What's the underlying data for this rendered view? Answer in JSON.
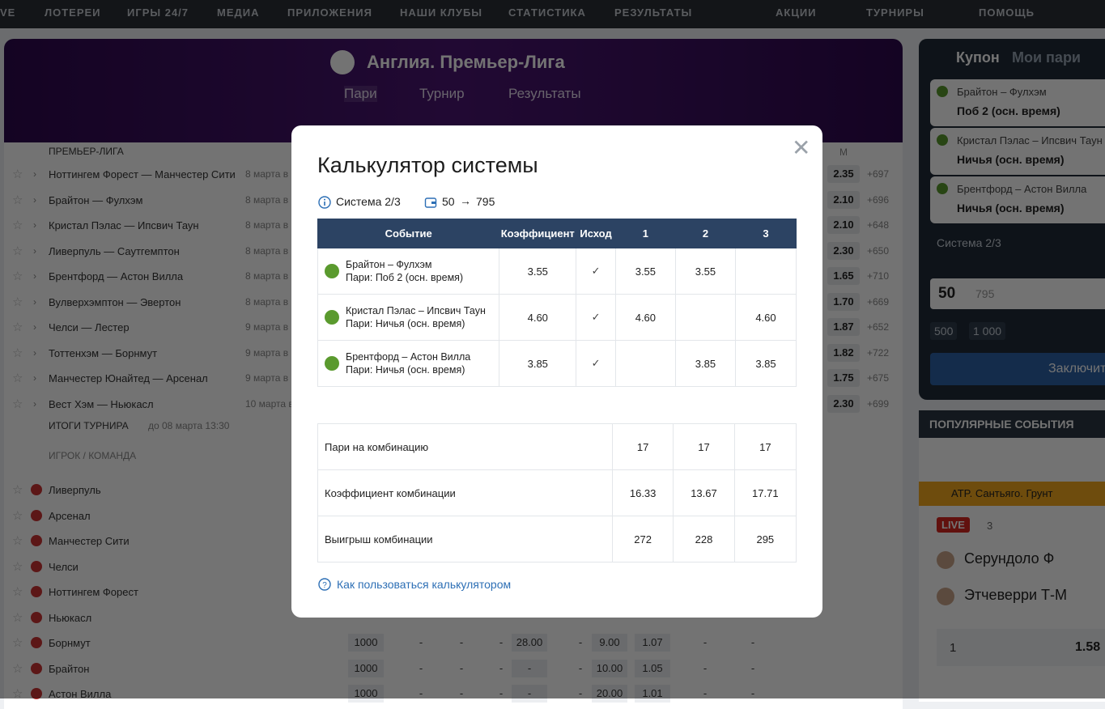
{
  "nav": {
    "items": [
      "VE",
      "ЛОТЕРЕИ",
      "ИГРЫ 24/7",
      "МЕДИА",
      "ПРИЛОЖЕНИЯ",
      "НАШИ КЛУБЫ",
      "СТАТИСТИКА",
      "РЕЗУЛЬТАТЫ"
    ],
    "right": [
      "АКЦИИ",
      "ТУРНИРЫ",
      "ПОМОЩЬ"
    ]
  },
  "league": {
    "title": "Англия. Премьер-Лига",
    "tabs": [
      "Пари",
      "Турнир",
      "Результаты"
    ]
  },
  "matches": {
    "section": "ПРЕМЬЕР-ЛИГА",
    "column": "М",
    "rows": [
      {
        "name": "Ноттингем Форест — Манчестер Сити",
        "date": "8 марта в",
        "odd": "2.35",
        "more": "+697"
      },
      {
        "name": "Брайтон — Фулхэм",
        "date": "8 марта в",
        "odd": "2.10",
        "more": "+696"
      },
      {
        "name": "Кристал Пэлас — Ипсвич Таун",
        "date": "8 марта в",
        "odd": "2.10",
        "more": "+648"
      },
      {
        "name": "Ливерпуль — Саутгемптон",
        "date": "8 марта в",
        "odd": "2.30",
        "more": "+650"
      },
      {
        "name": "Брентфорд — Астон Вилла",
        "date": "8 марта в",
        "odd": "1.65",
        "more": "+710"
      },
      {
        "name": "Вулверхэмптон — Эвертон",
        "date": "8 марта в",
        "odd": "1.70",
        "more": "+669"
      },
      {
        "name": "Челси — Лестер",
        "date": "9 марта в",
        "odd": "1.87",
        "more": "+652"
      },
      {
        "name": "Тоттенхэм — Борнмут",
        "date": "9 марта в",
        "odd": "1.82",
        "more": "+722"
      },
      {
        "name": "Манчестер Юнайтед — Арсенал",
        "date": "9 марта в",
        "odd": "1.75",
        "more": "+675"
      },
      {
        "name": "Вест Хэм — Ньюкасл",
        "date": "10 марта в",
        "odd": "2.30",
        "more": "+699"
      }
    ]
  },
  "outright": {
    "section": "ИТОГИ ТУРНИРА",
    "deadline": "до 08 марта 13:30",
    "column": "ИГРОК / КОМАНДА",
    "rows": [
      {
        "name": "Ливерпуль"
      },
      {
        "name": "Арсенал"
      },
      {
        "name": "Манчестер Сити"
      },
      {
        "name": "Челси"
      },
      {
        "name": "Ноттингем Форест"
      },
      {
        "name": "Ньюкасл"
      },
      {
        "name": "Борнмут",
        "cells": [
          "1000",
          "-",
          "-",
          "-",
          "28.00",
          "-",
          "9.00",
          "1.07",
          "-",
          "-"
        ]
      },
      {
        "name": "Брайтон",
        "cells": [
          "1000",
          "-",
          "-",
          "-",
          "-",
          "-",
          "10.00",
          "1.05",
          "-",
          "-"
        ]
      },
      {
        "name": "Астон Вилла",
        "cells": [
          "1000",
          "-",
          "-",
          "-",
          "-",
          "-",
          "20.00",
          "1.01",
          "-",
          "-"
        ]
      }
    ]
  },
  "coupon": {
    "tabs": [
      "Купон",
      "Мои пари"
    ],
    "bets": [
      {
        "match": "Брайтон – Фулхэм",
        "pick": "Поб 2 (осн. время)"
      },
      {
        "match": "Кристал Пэлас – Ипсвич Таун",
        "pick": "Ничья (осн. время)"
      },
      {
        "match": "Брентфорд – Астон Вилла",
        "pick": "Ничья (осн. время)"
      }
    ],
    "system": "Система 2/3",
    "stake": "50",
    "payout": "795",
    "quick": [
      "500",
      "1 000"
    ],
    "submit": "Заключить"
  },
  "popular": {
    "title": "ПОПУЛЯРНЫЕ СОБЫТИЯ",
    "event": "ATP. Сантьяго. Грунт",
    "live": "LIVE",
    "count": "3",
    "players": [
      "Серундоло Ф",
      "Этчеверри Т-М"
    ],
    "score": "1",
    "odd": "1.58"
  },
  "modal": {
    "title": "Калькулятор системы",
    "system": "Система 2/3",
    "stake": "50",
    "payout": "795",
    "header": [
      "Событие",
      "Коэффициент",
      "Исход",
      "1",
      "2",
      "3"
    ],
    "rows": [
      {
        "event": "Брайтон – Фулхэм",
        "pick": "Пари: Поб 2 (осн. время)",
        "odd": "3.55",
        "combos": [
          "3.55",
          "3.55",
          ""
        ]
      },
      {
        "event": "Кристал Пэлас – Ипсвич Таун",
        "pick": "Пари: Ничья (осн. время)",
        "odd": "4.60",
        "combos": [
          "4.60",
          "",
          "4.60"
        ]
      },
      {
        "event": "Брентфорд – Астон Вилла",
        "pick": "Пари: Ничья (осн. время)",
        "odd": "3.85",
        "combos": [
          "",
          "3.85",
          "3.85"
        ]
      }
    ],
    "summary": [
      {
        "label": "Пари на комбинацию",
        "values": [
          "17",
          "17",
          "17"
        ]
      },
      {
        "label": "Коэффициент комбинации",
        "values": [
          "16.33",
          "13.67",
          "17.71"
        ]
      },
      {
        "label": "Выигрыш комбинации",
        "values": [
          "272",
          "228",
          "295"
        ]
      }
    ],
    "help": "Как пользоваться калькулятором"
  }
}
